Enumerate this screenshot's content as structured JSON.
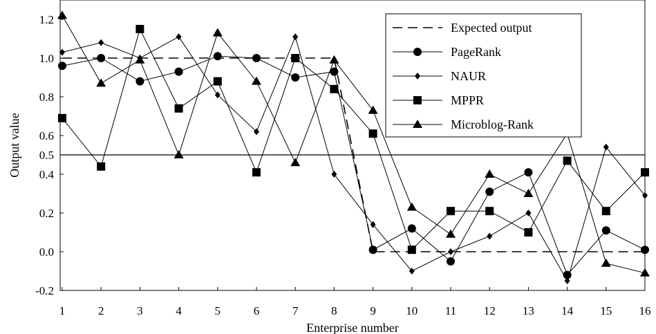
{
  "chart_data": {
    "type": "line",
    "title": "",
    "xlabel": "Enterprise number",
    "ylabel": "Output value",
    "x": [
      1,
      2,
      3,
      4,
      5,
      6,
      7,
      8,
      9,
      10,
      11,
      12,
      13,
      14,
      15,
      16
    ],
    "xlim": [
      1,
      16
    ],
    "ylim": [
      -0.2,
      1.3
    ],
    "y_ticks": [
      "-0.2",
      "0.0",
      "0.2",
      "0.4",
      "0.5",
      "0.6",
      "0.8",
      "1.0",
      "1.2"
    ],
    "y_tick_values": [
      -0.2,
      0.0,
      0.2,
      0.4,
      0.5,
      0.6,
      0.8,
      1.0,
      1.2
    ],
    "x_ticks": [
      "1",
      "2",
      "3",
      "4",
      "5",
      "6",
      "7",
      "8",
      "9",
      "10",
      "11",
      "12",
      "13",
      "14",
      "15",
      "16"
    ],
    "reference_line": 0.5,
    "grid": false,
    "legend_position": "top-right",
    "series": [
      {
        "name": "Expected output",
        "marker": "none",
        "dash": true,
        "color": "#000000",
        "values": [
          1,
          1,
          1,
          1,
          1,
          1,
          1,
          1,
          0,
          0,
          0,
          0,
          0,
          0,
          0,
          0
        ]
      },
      {
        "name": "PageRank",
        "marker": "circle",
        "color": "#000000",
        "values": [
          0.96,
          1.0,
          0.88,
          0.93,
          1.01,
          1.0,
          0.9,
          0.93,
          0.01,
          0.12,
          -0.05,
          0.31,
          0.41,
          -0.12,
          0.11,
          0.01
        ]
      },
      {
        "name": "NAUR",
        "marker": "diamond",
        "color": "#000000",
        "values": [
          1.03,
          1.08,
          1.0,
          1.11,
          0.81,
          0.62,
          1.11,
          0.4,
          0.14,
          -0.1,
          0.0,
          0.08,
          0.2,
          -0.15,
          0.54,
          0.29
        ]
      },
      {
        "name": "MPPR",
        "marker": "square",
        "color": "#000000",
        "values": [
          0.69,
          0.44,
          1.15,
          0.74,
          0.88,
          0.41,
          1.0,
          0.84,
          0.61,
          0.01,
          0.21,
          0.21,
          0.1,
          0.47,
          0.21,
          0.41
        ]
      },
      {
        "name": "Microblog-Rank",
        "marker": "triangle",
        "color": "#000000",
        "values": [
          1.22,
          0.87,
          0.99,
          0.5,
          1.13,
          0.88,
          0.46,
          0.99,
          0.73,
          0.23,
          0.09,
          0.4,
          0.3,
          0.61,
          -0.06,
          -0.11
        ]
      }
    ]
  }
}
